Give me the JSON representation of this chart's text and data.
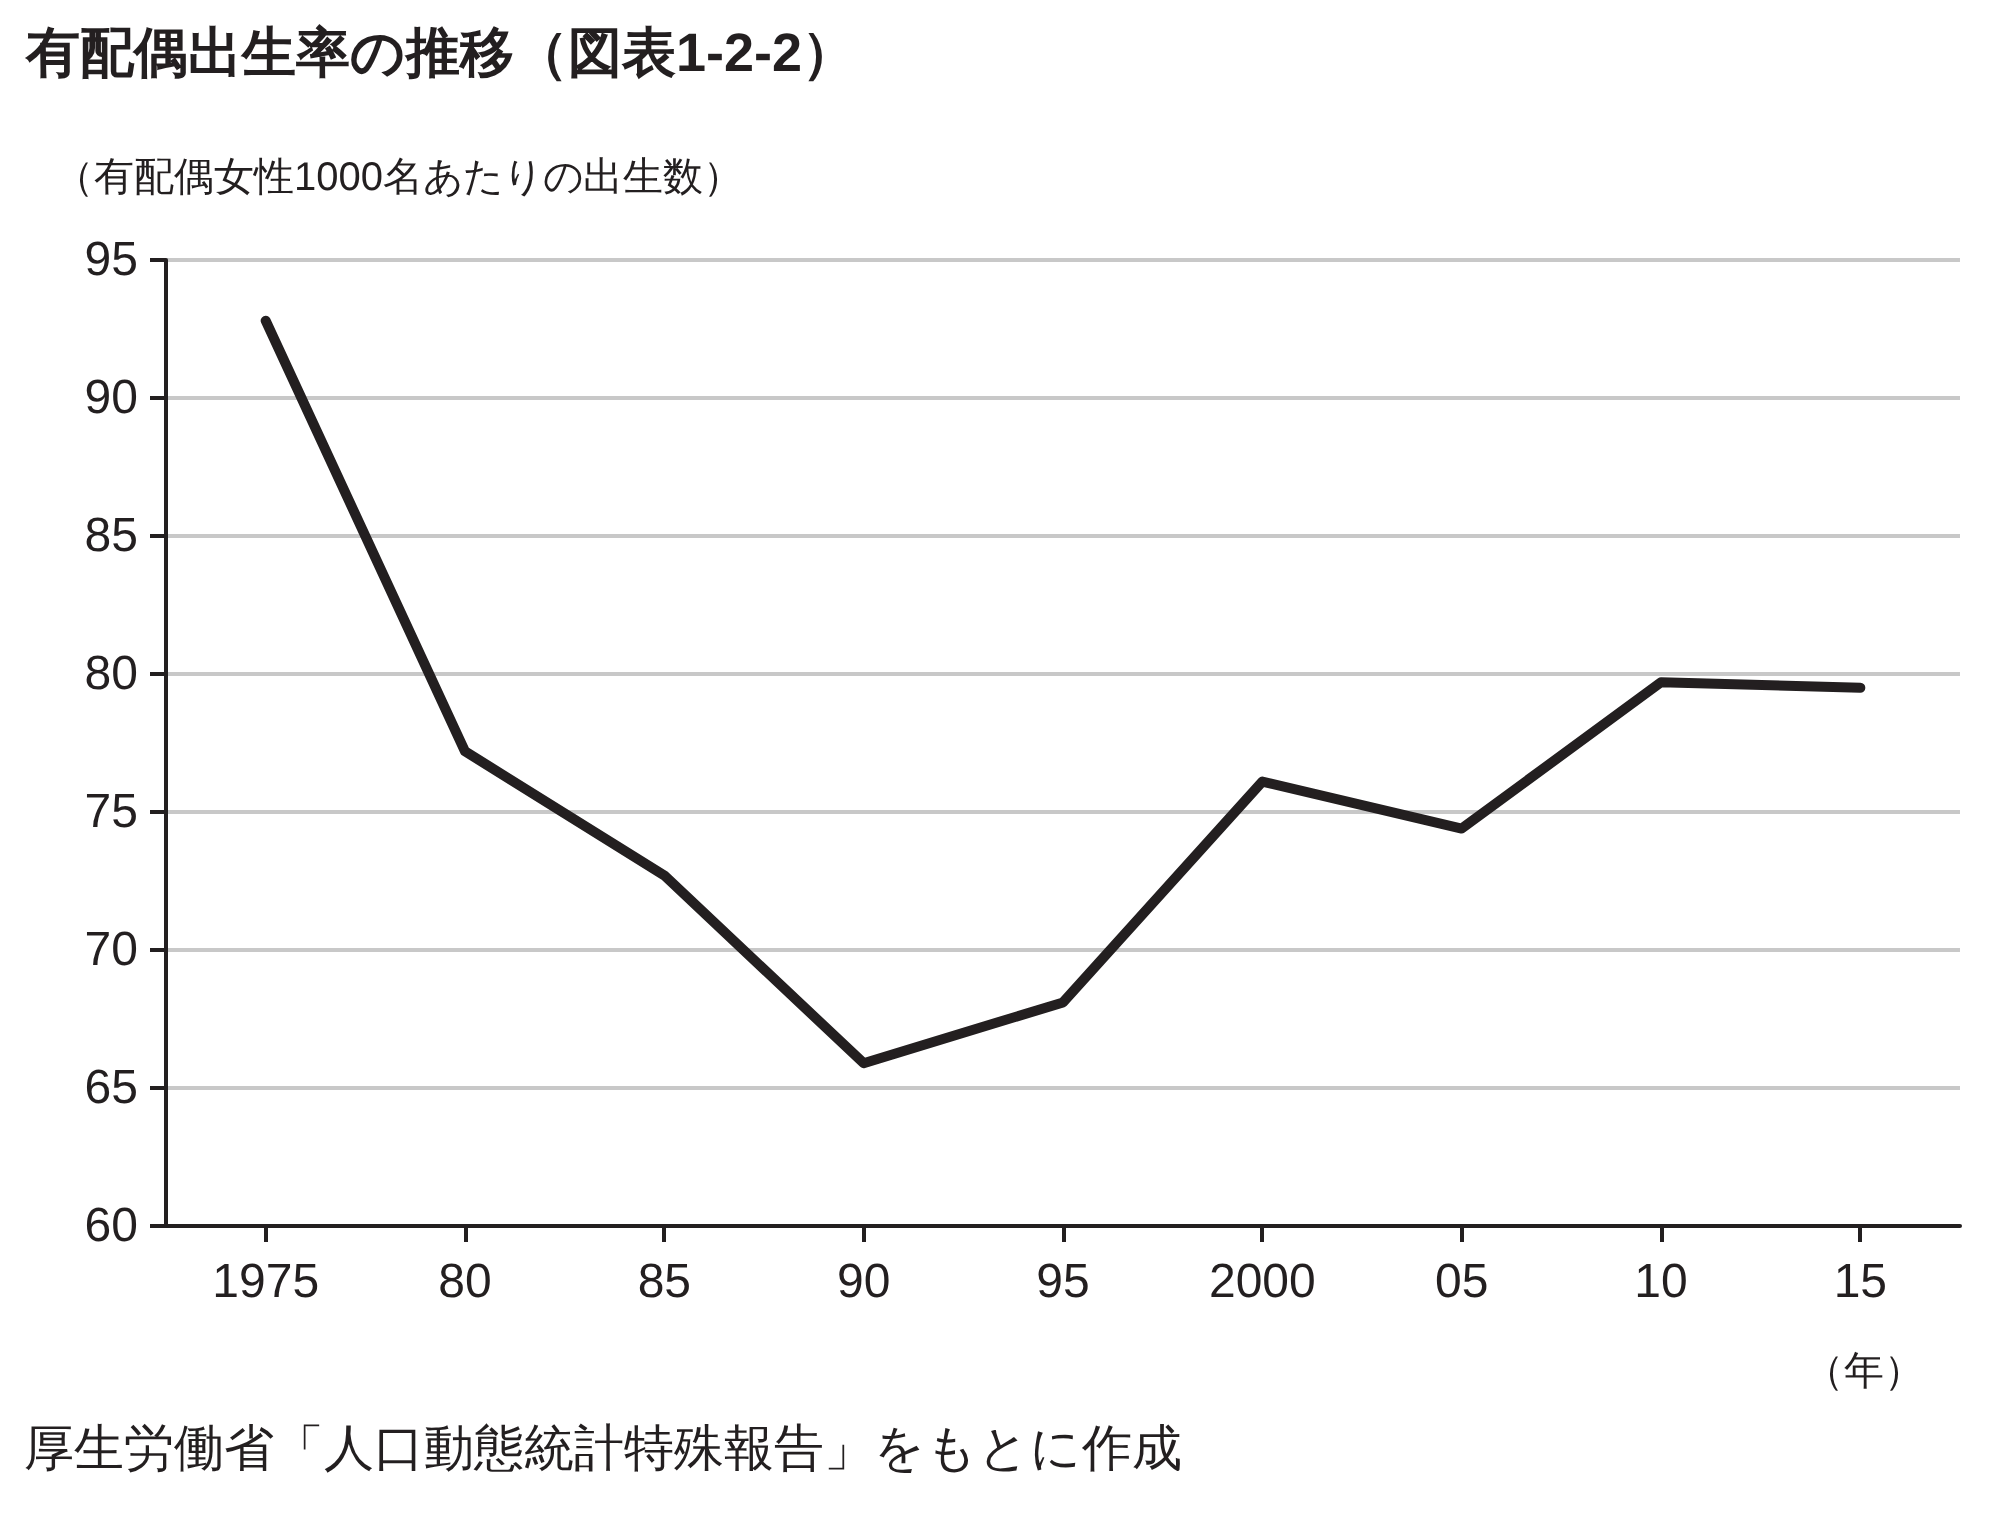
{
  "chart_data": {
    "type": "line",
    "title": "有配偶出生率の推移（図表1-2-2）",
    "ylabel": "（有配偶女性1000名あたりの出生数）",
    "xlabel": "（年）",
    "categories": [
      "1975",
      "80",
      "85",
      "90",
      "95",
      "2000",
      "05",
      "10",
      "15"
    ],
    "series": [
      {
        "color": "#231f20",
        "values": [
          92.8,
          77.2,
          72.7,
          65.9,
          68.1,
          76.1,
          74.4,
          79.7,
          79.5
        ]
      }
    ],
    "ylim": [
      60,
      95
    ],
    "yticks": [
      60,
      65,
      70,
      75,
      80,
      85,
      90,
      95
    ],
    "grid": "y",
    "marker": "none",
    "line_style": "solid",
    "annotations": [
      "厚生労働省「人口動態統計特殊報告」をもとに作成"
    ]
  }
}
